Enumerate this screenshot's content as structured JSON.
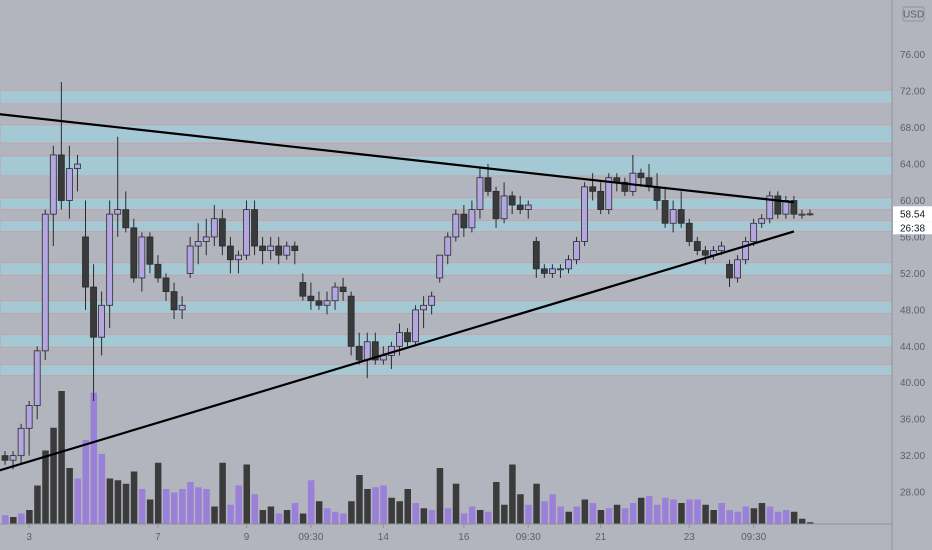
{
  "chart_data": {
    "type": "candlestick",
    "currency_label": "USD",
    "y_ticks": [
      "28.00",
      "32.00",
      "36.00",
      "40.00",
      "44.00",
      "48.00",
      "52.00",
      "56.00",
      "60.00",
      "64.00",
      "68.00",
      "72.00",
      "76.00"
    ],
    "x_ticks": [
      {
        "label": "3",
        "x": 3
      },
      {
        "label": "7",
        "x": 19
      },
      {
        "label": "9",
        "x": 30
      },
      {
        "label": "09:30",
        "x": 38
      },
      {
        "label": "14",
        "x": 47
      },
      {
        "label": "16",
        "x": 57
      },
      {
        "label": "09:30",
        "x": 65
      },
      {
        "label": "21",
        "x": 74
      },
      {
        "label": "23",
        "x": 85
      },
      {
        "label": "09:30",
        "x": 93
      }
    ],
    "y_range": [
      24.5,
      82
    ],
    "last_price_label": "58.54",
    "countdown_label": "26:38",
    "last_price": 58.54,
    "zones": [
      [
        70.6,
        72.1
      ],
      [
        66.3,
        68.3
      ],
      [
        62.7,
        64.9
      ],
      [
        59.0,
        60.3
      ],
      [
        56.6,
        57.8
      ],
      [
        51.8,
        53.2
      ],
      [
        47.6,
        49.0
      ],
      [
        43.9,
        45.3
      ],
      [
        40.8,
        42.0
      ]
    ],
    "trendlines": [
      {
        "x1": -1,
        "y1": 69.5,
        "x2": 98,
        "y2": 59.8
      },
      {
        "x1": -1,
        "y1": 30.3,
        "x2": 98,
        "y2": 56.6
      }
    ],
    "candles": [
      [
        32,
        32.5,
        31,
        31.5
      ],
      [
        31.5,
        32.5,
        30.5,
        32
      ],
      [
        32,
        35.5,
        31,
        35
      ],
      [
        35,
        38,
        32,
        37.5
      ],
      [
        37.5,
        44,
        36,
        43.5
      ],
      [
        43.5,
        59,
        42.5,
        58.5
      ],
      [
        58.5,
        66,
        55,
        65
      ],
      [
        65,
        73,
        59,
        60
      ],
      [
        60,
        66,
        58,
        63.5
      ],
      [
        63.5,
        65,
        61,
        64
      ],
      [
        56,
        60,
        48,
        50.5
      ],
      [
        50.5,
        53,
        38,
        45
      ],
      [
        45,
        50,
        43,
        48.5
      ],
      [
        48.5,
        60,
        46,
        58.5
      ],
      [
        58.5,
        67,
        56,
        59
      ],
      [
        59,
        61,
        56.5,
        57
      ],
      [
        57,
        58,
        51,
        51.5
      ],
      [
        51.5,
        56.5,
        50,
        56
      ],
      [
        56,
        56.5,
        52,
        53
      ],
      [
        53,
        54,
        51,
        51.5
      ],
      [
        51.5,
        52,
        49,
        50
      ],
      [
        50,
        51,
        47,
        48
      ],
      [
        48,
        49.5,
        47,
        48.5
      ],
      [
        52,
        56,
        51.5,
        55
      ],
      [
        55,
        57.5,
        53,
        55.5
      ],
      [
        55.5,
        58,
        54,
        56
      ],
      [
        56,
        59.5,
        55,
        58
      ],
      [
        58,
        59,
        54,
        55
      ],
      [
        55,
        56,
        52,
        53.5
      ],
      [
        53.5,
        54.5,
        52,
        54
      ],
      [
        54,
        60,
        53.5,
        59
      ],
      [
        59,
        60,
        54,
        55
      ],
      [
        55,
        56,
        53,
        54.5
      ],
      [
        54.5,
        56,
        53.5,
        55
      ],
      [
        55,
        56,
        53,
        54
      ],
      [
        54,
        55.5,
        53.5,
        55
      ],
      [
        55,
        55.5,
        53,
        54.5
      ],
      [
        51,
        52,
        49,
        49.5
      ],
      [
        49.5,
        51,
        48,
        49
      ],
      [
        49,
        50,
        48,
        48.5
      ],
      [
        48.5,
        50,
        47.5,
        49
      ],
      [
        49,
        51,
        48,
        50.5
      ],
      [
        50.5,
        51.5,
        49,
        50
      ],
      [
        49.5,
        50,
        43,
        44
      ],
      [
        44,
        45.5,
        42,
        42.5
      ],
      [
        42.5,
        45.5,
        40.5,
        44.5
      ],
      [
        44.5,
        45.5,
        42,
        42.5
      ],
      [
        42.5,
        44,
        42,
        43
      ],
      [
        43,
        44.5,
        41.5,
        44
      ],
      [
        44,
        46.5,
        43,
        45.5
      ],
      [
        45.5,
        46,
        44,
        44.5
      ],
      [
        44.5,
        48.5,
        44,
        48
      ],
      [
        48,
        49.5,
        46,
        48.5
      ],
      [
        48.5,
        50,
        47.5,
        49.5
      ],
      [
        51.5,
        54,
        51,
        54
      ],
      [
        54,
        56.5,
        53,
        56
      ],
      [
        56,
        59,
        55.5,
        58.5
      ],
      [
        58.5,
        59.5,
        56,
        57
      ],
      [
        57,
        60,
        56.5,
        59
      ],
      [
        59,
        63.5,
        58,
        62.5
      ],
      [
        62.5,
        64,
        60.5,
        61
      ],
      [
        61,
        61.5,
        57,
        58
      ],
      [
        58,
        62,
        57.5,
        60.5
      ],
      [
        60.5,
        61,
        58.5,
        59.5
      ],
      [
        59.5,
        60.5,
        58.5,
        59
      ],
      [
        59,
        60,
        58,
        59.5
      ],
      [
        55.5,
        56,
        51.5,
        52.5
      ],
      [
        52.5,
        53,
        51.5,
        52
      ],
      [
        52,
        53,
        51.5,
        52.5
      ],
      [
        52.5,
        53,
        51.5,
        52.5
      ],
      [
        52.5,
        54,
        52,
        53.5
      ],
      [
        53.5,
        56,
        53,
        55.5
      ],
      [
        55.5,
        62,
        55,
        61.5
      ],
      [
        61.5,
        63,
        60,
        61
      ],
      [
        61,
        62,
        58.5,
        59
      ],
      [
        59,
        63,
        58.5,
        62.5
      ],
      [
        62.5,
        63,
        61,
        62
      ],
      [
        62,
        62.5,
        60.5,
        61
      ],
      [
        61,
        65,
        60.5,
        63
      ],
      [
        63,
        63.5,
        61.5,
        62.5
      ],
      [
        62.5,
        64,
        61,
        61.5
      ],
      [
        61.5,
        63,
        59,
        60
      ],
      [
        60,
        61.5,
        57,
        57.5
      ],
      [
        57.5,
        60,
        56.5,
        59
      ],
      [
        59,
        61,
        57,
        57.5
      ],
      [
        57.5,
        58,
        55,
        55.5
      ],
      [
        55.5,
        56,
        54,
        54.5
      ],
      [
        54.5,
        55,
        53,
        54
      ],
      [
        54,
        55,
        53.5,
        54.5
      ],
      [
        54.5,
        55.5,
        54,
        55
      ],
      [
        53,
        53.5,
        50.5,
        51.5
      ],
      [
        51.5,
        54,
        51,
        53.5
      ],
      [
        53.5,
        56,
        53,
        55.5
      ],
      [
        55.5,
        58,
        55,
        57.5
      ],
      [
        57.5,
        58.5,
        57,
        58
      ],
      [
        58,
        61,
        57.5,
        60.5
      ],
      [
        60.5,
        61,
        58,
        58.5
      ],
      [
        58.5,
        60.5,
        58,
        60
      ],
      [
        60,
        60.5,
        58,
        58.5
      ],
      [
        58.5,
        59,
        58,
        58.5
      ],
      [
        58.5,
        59,
        58.3,
        58.54
      ]
    ],
    "volumes": [
      [
        5,
        1
      ],
      [
        4,
        0
      ],
      [
        6,
        1
      ],
      [
        8,
        0
      ],
      [
        22,
        0
      ],
      [
        42,
        0
      ],
      [
        55,
        0
      ],
      [
        76,
        0
      ],
      [
        32,
        0
      ],
      [
        26,
        1
      ],
      [
        48,
        1
      ],
      [
        75,
        1
      ],
      [
        40,
        1
      ],
      [
        26,
        0
      ],
      [
        25,
        0
      ],
      [
        23,
        0
      ],
      [
        30,
        0
      ],
      [
        20,
        1
      ],
      [
        14,
        0
      ],
      [
        35,
        0
      ],
      [
        20,
        1
      ],
      [
        18,
        1
      ],
      [
        20,
        1
      ],
      [
        24,
        1
      ],
      [
        21,
        1
      ],
      [
        20,
        1
      ],
      [
        10,
        0
      ],
      [
        35,
        0
      ],
      [
        11,
        1
      ],
      [
        22,
        1
      ],
      [
        34,
        0
      ],
      [
        17,
        1
      ],
      [
        8,
        0
      ],
      [
        10,
        0
      ],
      [
        6,
        1
      ],
      [
        8,
        0
      ],
      [
        12,
        1
      ],
      [
        6,
        0
      ],
      [
        25,
        1
      ],
      [
        13,
        0
      ],
      [
        9,
        1
      ],
      [
        7,
        1
      ],
      [
        6,
        1
      ],
      [
        13,
        0
      ],
      [
        28,
        0
      ],
      [
        20,
        0
      ],
      [
        21,
        1
      ],
      [
        22,
        1
      ],
      [
        15,
        0
      ],
      [
        13,
        0
      ],
      [
        20,
        0
      ],
      [
        12,
        1
      ],
      [
        9,
        0
      ],
      [
        8,
        1
      ],
      [
        32,
        0
      ],
      [
        9,
        1
      ],
      [
        23,
        0
      ],
      [
        6,
        1
      ],
      [
        10,
        1
      ],
      [
        8,
        0
      ],
      [
        7,
        1
      ],
      [
        24,
        0
      ],
      [
        11,
        0
      ],
      [
        34,
        0
      ],
      [
        17,
        0
      ],
      [
        11,
        1
      ],
      [
        23,
        0
      ],
      [
        13,
        1
      ],
      [
        17,
        1
      ],
      [
        10,
        1
      ],
      [
        7,
        0
      ],
      [
        10,
        1
      ],
      [
        14,
        0
      ],
      [
        12,
        1
      ],
      [
        8,
        0
      ],
      [
        9,
        1
      ],
      [
        11,
        0
      ],
      [
        9,
        1
      ],
      [
        12,
        1
      ],
      [
        15,
        0
      ],
      [
        16,
        1
      ],
      [
        11,
        1
      ],
      [
        15,
        1
      ],
      [
        14,
        1
      ],
      [
        12,
        0
      ],
      [
        14,
        1
      ],
      [
        14,
        1
      ],
      [
        11,
        0
      ],
      [
        8,
        0
      ],
      [
        12,
        1
      ],
      [
        8,
        1
      ],
      [
        7,
        1
      ],
      [
        10,
        1
      ],
      [
        9,
        0
      ],
      [
        12,
        0
      ],
      [
        10,
        1
      ],
      [
        7,
        1
      ],
      [
        8,
        1
      ],
      [
        7,
        0
      ],
      [
        3,
        0
      ],
      [
        1,
        0
      ]
    ]
  },
  "colors": {
    "background": "#b2b5be",
    "zone_fill": "#a5c9d4",
    "zone_border": "#c2a3aa",
    "up_candle": "#b4a6df",
    "down_candle": "#3a3a3c",
    "volume_up": "#9a80d8",
    "volume_down": "#3b3b3b",
    "trendline": "#000000",
    "axis_line": "#8f929a",
    "axis_text": "#5d606b"
  }
}
